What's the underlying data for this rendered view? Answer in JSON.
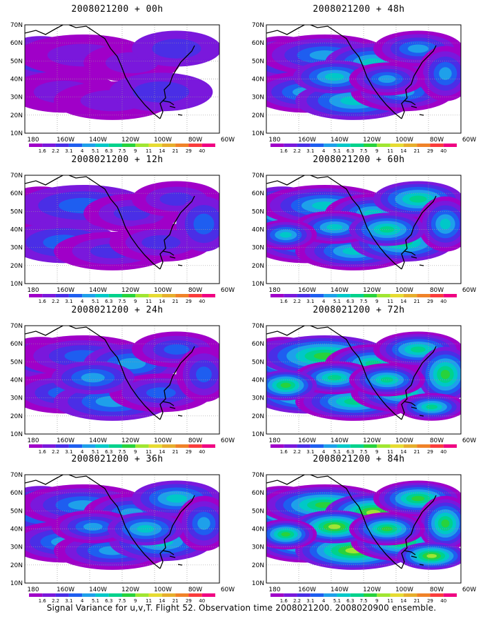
{
  "panels": [
    {
      "title": "2008021200 + 00h",
      "level": 0
    },
    {
      "title": "2008021200 + 48h",
      "level": 3
    },
    {
      "title": "2008021200 + 12h",
      "level": 1
    },
    {
      "title": "2008021200 + 60h",
      "level": 4
    },
    {
      "title": "2008021200 + 24h",
      "level": 2
    },
    {
      "title": "2008021200 + 72h",
      "level": 5
    },
    {
      "title": "2008021200 + 36h",
      "level": 3
    },
    {
      "title": "2008021200 + 84h",
      "level": 6
    }
  ],
  "lat_labels": [
    "10N",
    "20N",
    "30N",
    "40N",
    "50N",
    "60N",
    "70N"
  ],
  "lon_labels": [
    "180",
    "160W",
    "140W",
    "120W",
    "100W",
    "80W",
    "60W"
  ],
  "colorbar": {
    "labels": [
      "1.6",
      "2.2",
      "3.1",
      "4",
      "5.1",
      "6.3",
      "7.5",
      "9",
      "11",
      "14",
      "21",
      "29",
      "40"
    ],
    "colors": [
      "#a000c8",
      "#7a18dc",
      "#4a2ee6",
      "#1e5ef0",
      "#1ea0ea",
      "#00c8c8",
      "#00d28c",
      "#28d23c",
      "#a0e632",
      "#e6dc32",
      "#e6af2d",
      "#f08228",
      "#fa3c3c",
      "#f00082"
    ]
  },
  "caption": "Signal Variance for u,v,T. Flight 52. Observation time 2008021200. 2008020900 ensemble."
}
